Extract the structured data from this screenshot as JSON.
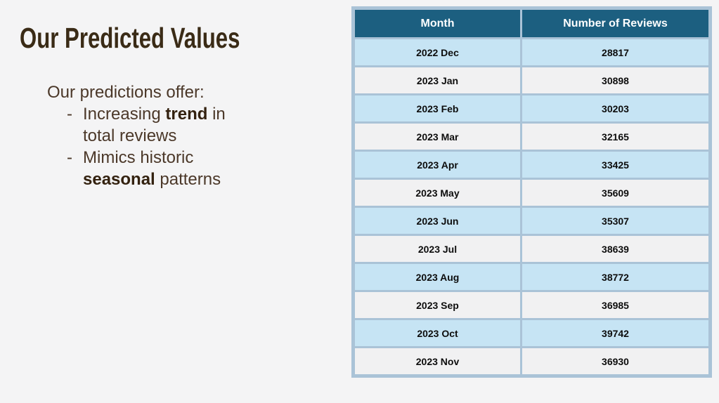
{
  "slide": {
    "title": "Our Predicted Values",
    "intro": "Our predictions offer:",
    "bullets": [
      {
        "marker": "-",
        "pre": "Increasing ",
        "bold": "trend",
        "post": " in total reviews"
      },
      {
        "marker": "-",
        "pre": "Mimics historic ",
        "bold": "seasonal",
        "post": " patterns"
      }
    ]
  },
  "table": {
    "headers": [
      "Month",
      "Number of Reviews"
    ],
    "rows": [
      {
        "month": "2022 Dec",
        "reviews": "28817"
      },
      {
        "month": "2023 Jan",
        "reviews": "30898"
      },
      {
        "month": "2023 Feb",
        "reviews": "30203"
      },
      {
        "month": "2023 Mar",
        "reviews": "32165"
      },
      {
        "month": "2023 Apr",
        "reviews": "33425"
      },
      {
        "month": "2023 May",
        "reviews": "35609"
      },
      {
        "month": "2023 Jun",
        "reviews": "35307"
      },
      {
        "month": "2023 Jul",
        "reviews": "38639"
      },
      {
        "month": "2023 Aug",
        "reviews": "38772"
      },
      {
        "month": "2023 Sep",
        "reviews": "36985"
      },
      {
        "month": "2023 Oct",
        "reviews": "39742"
      },
      {
        "month": "2023 Nov",
        "reviews": "36930"
      }
    ]
  },
  "colors": {
    "header_bg": "#1c5f80",
    "row_alt_bg": "#c6e4f4",
    "row_bg": "#f1f1f2",
    "table_border": "#aac3d7",
    "title_text": "#3a2b16",
    "body_text": "#4b3829",
    "slide_bg": "#f4f4f5"
  }
}
